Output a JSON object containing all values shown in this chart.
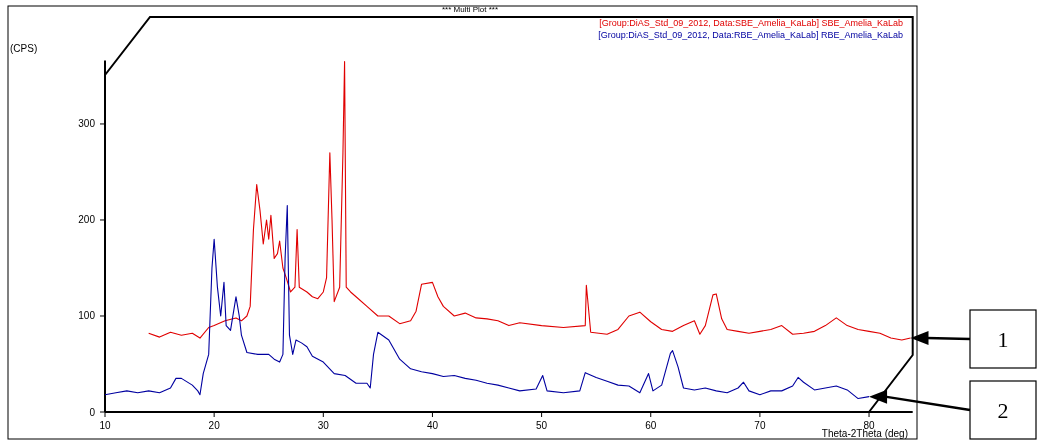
{
  "chart_data": {
    "type": "line",
    "title": "*** Multi Plot ***",
    "xlabel": "Theta-2Theta (deg)",
    "ylabel": "(CPS)",
    "xlim": [
      10,
      84
    ],
    "xticks": [
      10,
      20,
      30,
      40,
      50,
      60,
      70,
      80
    ],
    "ylim": [
      0,
      366
    ],
    "yticks": [
      0,
      100,
      200,
      300
    ],
    "grid": false,
    "legend": "top right",
    "line_style": "solid",
    "marker": "none",
    "annotations": [
      "1",
      "2"
    ],
    "series": [
      {
        "name": "[Group:DiAS_Std_09_2012, Data:SBE_Amelia_KaLab] SBE_Amelia_KaLab",
        "color": "#e00000",
        "x": [
          14,
          15,
          16,
          17,
          18,
          18.7,
          19.5,
          20,
          21,
          22,
          22.5,
          23,
          23.3,
          23.6,
          23.9,
          24.2,
          24.5,
          24.8,
          25,
          25.2,
          25.5,
          25.8,
          26,
          26.3,
          26.6,
          27,
          27.4,
          27.6,
          27.8,
          28.5,
          29,
          29.5,
          30,
          30.3,
          30.6,
          30.8,
          31,
          31.5,
          31.8,
          31.95,
          32.1,
          32.5,
          33,
          34,
          35,
          36,
          37,
          38,
          38.5,
          39,
          40,
          40.5,
          41,
          42,
          43,
          44,
          45,
          46,
          47,
          48,
          50,
          52,
          54,
          54.1,
          54.5,
          56,
          57,
          58,
          59,
          60,
          61,
          62,
          63,
          64,
          64.5,
          65,
          65.7,
          66,
          66.5,
          67,
          68,
          69,
          70,
          71,
          72,
          73,
          74,
          75,
          76,
          77,
          78,
          79,
          80,
          81,
          82,
          83,
          83.8
        ],
        "values": [
          82,
          78,
          83,
          80,
          82,
          77,
          88,
          90,
          95,
          98,
          95,
          100,
          110,
          190,
          237,
          210,
          175,
          200,
          180,
          205,
          160,
          165,
          178,
          150,
          140,
          125,
          130,
          190,
          130,
          125,
          120,
          118,
          125,
          140,
          270,
          200,
          115,
          130,
          270,
          365,
          130,
          125,
          120,
          110,
          100,
          100,
          92,
          95,
          105,
          133,
          135,
          120,
          110,
          100,
          103,
          98,
          97,
          95,
          90,
          93,
          90,
          88,
          90,
          132,
          83,
          81,
          86,
          100,
          104,
          94,
          86,
          84,
          90,
          95,
          81,
          90,
          122,
          123,
          97,
          86,
          84,
          82,
          84,
          86,
          90,
          81,
          82,
          84,
          90,
          98,
          90,
          86,
          84,
          82,
          77,
          75,
          77
        ]
      },
      {
        "name": "[Group:DiAS_Std_09_2012, Data:RBE_Amelia_KaLab] RBE_Amelia_KaLab",
        "color": "#0000a0",
        "x": [
          10,
          11,
          12,
          13,
          14,
          15,
          16,
          16.5,
          17,
          18,
          18.5,
          18.7,
          19,
          19.5,
          19.8,
          20,
          20.3,
          20.6,
          20.9,
          21.1,
          21.5,
          22,
          22.3,
          22.5,
          23,
          24,
          25,
          25.5,
          26,
          26.3,
          26.5,
          26.7,
          26.9,
          27.2,
          27.5,
          28,
          28.5,
          29,
          30,
          31,
          32,
          33,
          34,
          34.3,
          34.6,
          35,
          36,
          37,
          38,
          39,
          40,
          41,
          42,
          43,
          44,
          45,
          46,
          47,
          48,
          49.5,
          50.1,
          50.5,
          52,
          53.5,
          54,
          55,
          56,
          57,
          58,
          59,
          59.8,
          60.2,
          61,
          61.8,
          62,
          62.5,
          63,
          64,
          65,
          66,
          67,
          68,
          68.5,
          69,
          70,
          71,
          72,
          73,
          73.5,
          74,
          75,
          76,
          77,
          78,
          79,
          80
        ],
        "values": [
          18,
          20,
          22,
          20,
          22,
          20,
          25,
          35,
          35,
          28,
          22,
          18,
          40,
          60,
          150,
          180,
          130,
          100,
          135,
          90,
          85,
          120,
          100,
          80,
          62,
          60,
          60,
          55,
          52,
          60,
          160,
          215,
          80,
          60,
          75,
          72,
          68,
          58,
          52,
          40,
          38,
          30,
          30,
          25,
          60,
          83,
          75,
          55,
          45,
          42,
          40,
          37,
          38,
          35,
          33,
          30,
          28,
          25,
          22,
          24,
          38,
          22,
          20,
          22,
          41,
          36,
          32,
          28,
          27,
          20,
          40,
          22,
          28,
          61,
          64,
          47,
          25,
          23,
          25,
          22,
          20,
          25,
          31,
          22,
          18,
          22,
          22,
          27,
          36,
          31,
          23,
          25,
          27,
          23,
          14,
          16
        ]
      }
    ]
  }
}
